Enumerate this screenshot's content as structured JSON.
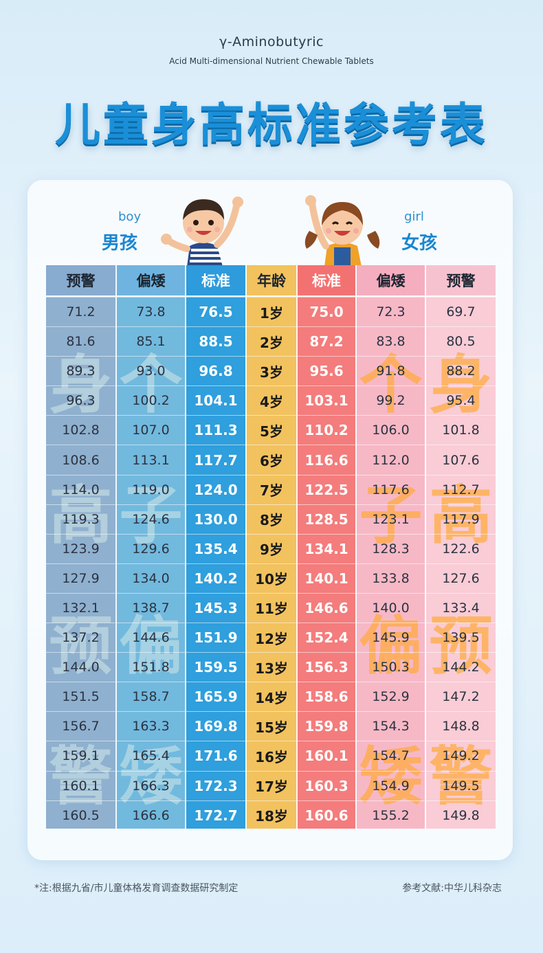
{
  "header": {
    "brand_line1": "γ-Aminobutyric",
    "brand_line2": "Acid Multi-dimensional Nutrient Chewable Tablets",
    "title": "儿童身高标准参考表"
  },
  "labels": {
    "boy_en": "boy",
    "boy_cn": "男孩",
    "girl_en": "girl",
    "girl_cn": "女孩"
  },
  "table": {
    "headers": [
      "预警",
      "偏矮",
      "标准",
      "年龄",
      "标准",
      "偏矮",
      "预警"
    ],
    "boy_warning": [
      "71.2",
      "81.6",
      "89.3",
      "96.3",
      "102.8",
      "108.6",
      "114.0",
      "119.3",
      "123.9",
      "127.9",
      "132.1",
      "137.2",
      "144.0",
      "151.5",
      "156.7",
      "159.1",
      "160.1",
      "160.5"
    ],
    "boy_short": [
      "73.8",
      "85.1",
      "93.0",
      "100.2",
      "107.0",
      "113.1",
      "119.0",
      "124.6",
      "129.6",
      "134.0",
      "138.7",
      "144.6",
      "151.8",
      "158.7",
      "163.3",
      "165.4",
      "166.3",
      "166.6"
    ],
    "boy_standard": [
      "76.5",
      "88.5",
      "96.8",
      "104.1",
      "111.3",
      "117.7",
      "124.0",
      "130.0",
      "135.4",
      "140.2",
      "145.3",
      "151.9",
      "159.5",
      "165.9",
      "169.8",
      "171.6",
      "172.3",
      "172.7"
    ],
    "age": [
      "1岁",
      "2岁",
      "3岁",
      "4岁",
      "5岁",
      "6岁",
      "7岁",
      "8岁",
      "9岁",
      "10岁",
      "11岁",
      "12岁",
      "13岁",
      "14岁",
      "15岁",
      "16岁",
      "17岁",
      "18岁"
    ],
    "girl_standard": [
      "75.0",
      "87.2",
      "95.6",
      "103.1",
      "110.2",
      "116.6",
      "122.5",
      "128.5",
      "134.1",
      "140.1",
      "146.6",
      "152.4",
      "156.3",
      "158.6",
      "159.8",
      "160.1",
      "160.3",
      "160.6"
    ],
    "girl_short": [
      "72.3",
      "83.8",
      "91.8",
      "99.2",
      "106.0",
      "112.0",
      "117.6",
      "123.1",
      "128.3",
      "133.8",
      "140.0",
      "145.9",
      "150.3",
      "152.9",
      "154.3",
      "154.7",
      "154.9",
      "155.2"
    ],
    "girl_warning": [
      "69.7",
      "80.5",
      "88.2",
      "95.4",
      "101.8",
      "107.6",
      "112.7",
      "117.9",
      "122.6",
      "127.6",
      "133.4",
      "139.5",
      "144.2",
      "147.2",
      "148.8",
      "149.2",
      "149.5",
      "149.8"
    ]
  },
  "watermarks": {
    "height_warning": [
      "身",
      "高",
      "预",
      "警"
    ],
    "short_stature": [
      "个",
      "子",
      "偏",
      "矮"
    ]
  },
  "footer": {
    "note": "*注:根据九省/市儿童体格发育调查数据研究制定",
    "reference": "参考文献:中华儿科杂志"
  },
  "colors": {
    "title": "#1a8fd8",
    "boy_standard": "#2f9fdd",
    "age": "#f2c25e",
    "girl_standard": "#f47c7c",
    "girl_short": "#f7b8c6"
  }
}
